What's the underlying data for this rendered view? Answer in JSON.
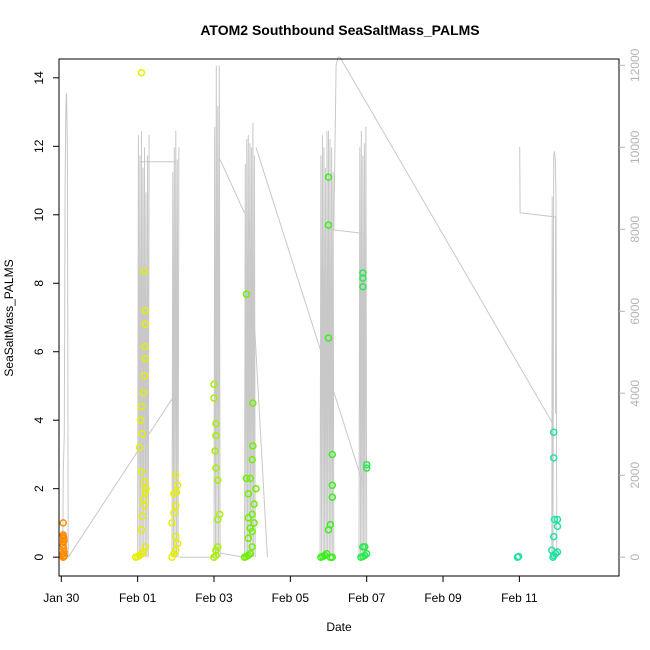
{
  "chart_data": {
    "type": "scatter",
    "title": "ATOM2 Southbound SeaSaltMass_PALMS",
    "xlabel": "Date",
    "ylabel": "SeaSaltMass_PALMS",
    "x_ticks": [
      "Jan 30",
      "Feb 01",
      "Feb 03",
      "Feb 05",
      "Feb 07",
      "Feb 09",
      "Feb 11"
    ],
    "xlim": [
      -2.06,
      12.61
    ],
    "ylim": [
      -0.55,
      14.55
    ],
    "y_ticks": [
      0,
      2,
      4,
      6,
      8,
      10,
      12,
      14
    ],
    "y2_ticks": [
      0,
      2000,
      4000,
      6000,
      8000,
      10000,
      12000
    ],
    "y2lim": [
      -459,
      12155
    ],
    "grid": false,
    "legend": "none",
    "colors": {
      "altitude_line": "#c8c8c8",
      "right_axis": "#b4b4b4",
      "axis": "#000000"
    },
    "scatter_series": [
      {
        "color": "#ff8c00",
        "points": [
          [
            -1.95,
            0.0
          ],
          [
            -1.93,
            0.02
          ],
          [
            -1.92,
            0.05
          ],
          [
            -1.95,
            0.1
          ],
          [
            -1.93,
            0.15
          ],
          [
            -1.94,
            0.25
          ],
          [
            -1.95,
            0.35
          ],
          [
            -1.94,
            0.45
          ],
          [
            -1.93,
            0.5
          ],
          [
            -1.94,
            0.55
          ],
          [
            -1.94,
            0.6
          ],
          [
            -1.95,
            0.65
          ],
          [
            -1.95,
            1.0
          ]
        ]
      },
      {
        "color": "#e6ee00",
        "points": [
          [
            -0.05,
            0.0
          ],
          [
            0.0,
            0.02
          ],
          [
            0.05,
            0.05
          ],
          [
            0.1,
            0.1
          ],
          [
            0.15,
            0.15
          ],
          [
            0.2,
            0.3
          ],
          [
            0.1,
            0.8
          ],
          [
            0.12,
            1.2
          ],
          [
            0.18,
            1.5
          ],
          [
            0.15,
            1.7
          ],
          [
            0.2,
            1.9
          ],
          [
            0.22,
            2.0
          ],
          [
            0.18,
            2.2
          ],
          [
            0.1,
            2.5
          ],
          [
            0.05,
            3.2
          ],
          [
            0.12,
            3.6
          ],
          [
            0.08,
            4.0
          ],
          [
            0.1,
            4.4
          ],
          [
            0.15,
            4.8
          ],
          [
            0.18,
            5.3
          ],
          [
            0.2,
            5.8
          ],
          [
            0.19,
            6.15
          ],
          [
            0.2,
            6.8
          ],
          [
            0.2,
            7.2
          ],
          [
            0.17,
            8.35
          ],
          [
            0.1,
            14.15
          ],
          [
            0.9,
            0.0
          ],
          [
            0.95,
            0.1
          ],
          [
            1.0,
            0.2
          ],
          [
            1.05,
            0.4
          ],
          [
            1.0,
            0.6
          ],
          [
            0.9,
            1.0
          ],
          [
            0.95,
            1.3
          ],
          [
            1.0,
            1.5
          ],
          [
            0.95,
            1.85
          ],
          [
            1.05,
            2.1
          ],
          [
            1.0,
            2.4
          ],
          [
            1.02,
            1.9
          ]
        ]
      },
      {
        "color": "#a6f000",
        "points": [
          [
            2.0,
            0.0
          ],
          [
            2.05,
            0.05
          ],
          [
            2.05,
            0.2
          ],
          [
            2.1,
            0.3
          ],
          [
            2.1,
            1.1
          ],
          [
            2.15,
            1.25
          ],
          [
            2.1,
            2.25
          ],
          [
            2.05,
            2.6
          ],
          [
            2.03,
            3.1
          ],
          [
            2.05,
            3.55
          ],
          [
            2.05,
            3.9
          ],
          [
            2.0,
            4.65
          ],
          [
            2.0,
            5.05
          ]
        ]
      },
      {
        "color": "#70ef00",
        "points": [
          [
            2.8,
            0.0
          ],
          [
            2.85,
            0.02
          ],
          [
            2.9,
            0.05
          ],
          [
            2.95,
            0.1
          ],
          [
            3.0,
            0.3
          ],
          [
            2.9,
            0.55
          ],
          [
            3.0,
            0.75
          ],
          [
            2.95,
            0.85
          ],
          [
            3.05,
            1.0
          ],
          [
            2.9,
            1.15
          ],
          [
            3.0,
            1.25
          ],
          [
            3.05,
            1.55
          ],
          [
            2.9,
            1.85
          ],
          [
            3.1,
            2.0
          ],
          [
            2.85,
            2.3
          ],
          [
            2.95,
            2.3
          ],
          [
            3.0,
            2.85
          ],
          [
            3.02,
            3.25
          ],
          [
            3.02,
            4.5
          ],
          [
            2.85,
            7.68
          ]
        ]
      },
      {
        "color": "#3bee1a",
        "points": [
          [
            4.8,
            0.0
          ],
          [
            4.85,
            0.02
          ],
          [
            4.9,
            0.05
          ],
          [
            4.95,
            0.1
          ],
          [
            5.05,
            0.0
          ],
          [
            5.1,
            0.0
          ],
          [
            5.0,
            0.8
          ],
          [
            5.05,
            0.95
          ],
          [
            5.1,
            1.75
          ],
          [
            5.1,
            2.1
          ],
          [
            5.1,
            3.0
          ],
          [
            5.0,
            6.4
          ],
          [
            5.0,
            9.7
          ],
          [
            5.0,
            11.1
          ]
        ]
      },
      {
        "color": "#2de850",
        "points": [
          [
            5.85,
            0.0
          ],
          [
            5.9,
            0.02
          ],
          [
            5.95,
            0.05
          ],
          [
            6.0,
            0.1
          ],
          [
            5.9,
            0.3
          ],
          [
            5.95,
            0.3
          ],
          [
            6.0,
            2.6
          ],
          [
            6.0,
            2.7
          ],
          [
            5.9,
            7.9
          ],
          [
            5.9,
            8.15
          ],
          [
            5.9,
            8.3
          ]
        ]
      },
      {
        "color": "#20e2a4",
        "points": [
          [
            9.95,
            0.0
          ],
          [
            9.98,
            0.02
          ],
          [
            10.88,
            0.0
          ],
          [
            10.9,
            0.05
          ],
          [
            10.95,
            0.1
          ],
          [
            11.0,
            0.15
          ],
          [
            10.85,
            0.2
          ],
          [
            10.9,
            0.6
          ],
          [
            11.0,
            0.9
          ],
          [
            10.92,
            1.1
          ],
          [
            11.0,
            1.1
          ],
          [
            10.9,
            2.9
          ],
          [
            10.9,
            3.65
          ]
        ]
      }
    ],
    "altitude_line": {
      "axis": "right",
      "segments": [
        {
          "x": [
            -1.96,
            -1.95,
            -1.92,
            -1.9,
            -1.88,
            -1.87,
            -1.86,
            -1.84,
            -1.82
          ],
          "y": [
            0,
            2000,
            3000,
            9000,
            11000,
            11300,
            11300,
            10000,
            0
          ]
        },
        {
          "x": [
            -1.82,
            1.0
          ],
          "y": [
            0,
            4000
          ]
        },
        {
          "x": [
            0.0,
            0.02,
            0.04,
            0.06,
            0.08,
            0.1,
            0.12,
            0.14,
            0.16,
            0.18,
            0.2,
            0.22,
            0.24,
            0.26,
            0.28,
            0.3
          ],
          "y": [
            0,
            10300,
            0,
            9800,
            0,
            10400,
            0,
            9500,
            0,
            10000,
            0,
            8900,
            0,
            9800,
            0,
            10300
          ]
        },
        {
          "x": [
            0.05,
            1.0
          ],
          "y": [
            9650,
            9650
          ]
        },
        {
          "x": [
            0.9,
            0.92,
            0.94,
            0.96,
            0.98,
            1.0,
            1.02,
            1.04,
            1.06,
            1.08
          ],
          "y": [
            0,
            9400,
            0,
            10000,
            0,
            10400,
            0,
            9700,
            0,
            10000
          ]
        },
        {
          "x": [
            1.1,
            2.0
          ],
          "y": [
            0,
            0
          ]
        },
        {
          "x": [
            2.0,
            2.02,
            2.04,
            2.06,
            2.08,
            2.1,
            2.12,
            2.14,
            2.16
          ],
          "y": [
            0,
            10500,
            0,
            12000,
            0,
            11000,
            0,
            12000,
            0
          ]
        },
        {
          "x": [
            2.16,
            2.8
          ],
          "y": [
            100,
            0
          ]
        },
        {
          "x": [
            2.16,
            2.8
          ],
          "y": [
            9700,
            8400
          ]
        },
        {
          "x": [
            2.8,
            2.82,
            2.84,
            2.86,
            2.88,
            2.9,
            2.92,
            2.94,
            2.96,
            2.98,
            3.0,
            3.02,
            3.04,
            3.06,
            3.08
          ],
          "y": [
            0,
            9600,
            0,
            10200,
            0,
            10300,
            0,
            10100,
            0,
            10000,
            0,
            10600,
            0,
            9800,
            0
          ]
        },
        {
          "x": [
            2.9,
            3.4
          ],
          "y": [
            8400,
            0
          ]
        },
        {
          "x": [
            4.78,
            4.8,
            4.82,
            4.84,
            4.86,
            4.88,
            4.9,
            4.92,
            4.94,
            4.96,
            4.98,
            5.0,
            5.02,
            5.04,
            5.06,
            5.08,
            5.1,
            5.12,
            5.14
          ],
          "y": [
            0,
            9800,
            0,
            10300,
            0,
            10000,
            0,
            9500,
            0,
            10400,
            0,
            10400,
            0,
            10200,
            0,
            10000,
            0,
            9400,
            0
          ]
        },
        {
          "x": [
            5.0,
            5.9
          ],
          "y": [
            8000,
            7900
          ]
        },
        {
          "x": [
            3.1,
            5.9
          ],
          "y": [
            10000,
            1800
          ]
        },
        {
          "x": [
            5.14,
            5.2,
            5.25,
            5.3
          ],
          "y": [
            8000,
            12000,
            12200,
            12200
          ]
        },
        {
          "x": [
            5.8,
            5.82,
            5.84,
            5.86,
            5.88,
            5.9,
            5.92,
            5.94,
            5.96,
            5.98,
            6.0
          ],
          "y": [
            0,
            10000,
            0,
            10400,
            0,
            9800,
            0,
            10100,
            0,
            10500,
            0
          ]
        },
        {
          "x": [
            5.3,
            10.85
          ],
          "y": [
            12200,
            3300
          ]
        },
        {
          "x": [
            10.0,
            10.01,
            10.02,
            10.05,
            10.95,
            10.95
          ],
          "y": [
            10000,
            10000,
            8400,
            8400,
            8300,
            3500
          ]
        },
        {
          "x": [
            10.85,
            10.86,
            10.88,
            10.9,
            10.92,
            10.94,
            10.96,
            10.98,
            11.0
          ],
          "y": [
            0,
            8800,
            0,
            9800,
            9900,
            9700,
            8800,
            0,
            0
          ]
        }
      ]
    }
  }
}
